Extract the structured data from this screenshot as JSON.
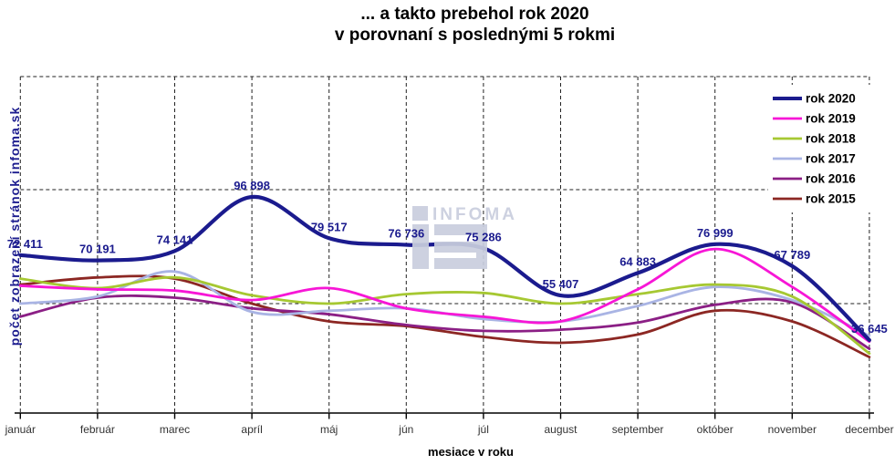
{
  "watermark": {
    "text": "INFOMA",
    "color": "#c9cede"
  },
  "chart_data": {
    "type": "line",
    "title_line1": "... a takto prebehol rok 2020",
    "title_line2": "v porovnaní s poslednými 5 rokmi",
    "xlabel": "mesiace v roku",
    "ylabel": "počet zobrazení stránok infoma.sk",
    "categories": [
      "január",
      "február",
      "marec",
      "apríl",
      "máj",
      "jún",
      "júl",
      "august",
      "september",
      "október",
      "november",
      "december"
    ],
    "y_axis": {
      "tick_labels_visible": false,
      "approx_value_range": [
        6000,
        147500
      ]
    },
    "legend_position": "top-right-inside",
    "grid": "dashed",
    "series": [
      {
        "name": "rok 2020",
        "color": "#1b1b8e",
        "line_width": 4.2,
        "values": [
          72411,
          70191,
          74141,
          96898,
          79517,
          76736,
          75286,
          55407,
          64883,
          76999,
          67789,
          36645
        ],
        "point_labels": [
          "72 411",
          "70 191",
          "74 141",
          "96 898",
          "79 517",
          "76 736",
          "75 286",
          "55 407",
          "64 883",
          "76 999",
          "67 789",
          "36 645"
        ]
      },
      {
        "name": "rok 2019",
        "color": "#f716d6",
        "line_width": 2.8,
        "values": [
          59500,
          58000,
          57500,
          53500,
          58500,
          50000,
          46500,
          44500,
          58000,
          75000,
          59000,
          36000
        ]
      },
      {
        "name": "rok 2018",
        "color": "#a6c832",
        "line_width": 2.8,
        "values": [
          62500,
          58500,
          63000,
          55500,
          52000,
          56000,
          56500,
          52000,
          56000,
          60000,
          55000,
          31000
        ]
      },
      {
        "name": "rok 2017",
        "color": "#a9b4e4",
        "line_width": 2.8,
        "values": [
          52000,
          55000,
          65500,
          48500,
          49000,
          50000,
          45500,
          44500,
          51000,
          59000,
          53500,
          38500
        ]
      },
      {
        "name": "rok 2016",
        "color": "#8b1f85",
        "line_width": 2.8,
        "values": [
          46500,
          54500,
          54500,
          50000,
          47500,
          43000,
          40500,
          41000,
          44000,
          51500,
          52500,
          33000
        ]
      },
      {
        "name": "rok 2015",
        "color": "#8c2723",
        "line_width": 2.8,
        "values": [
          60000,
          63000,
          62500,
          52000,
          44500,
          42500,
          38000,
          35500,
          39000,
          49000,
          44500,
          29500
        ]
      }
    ]
  }
}
